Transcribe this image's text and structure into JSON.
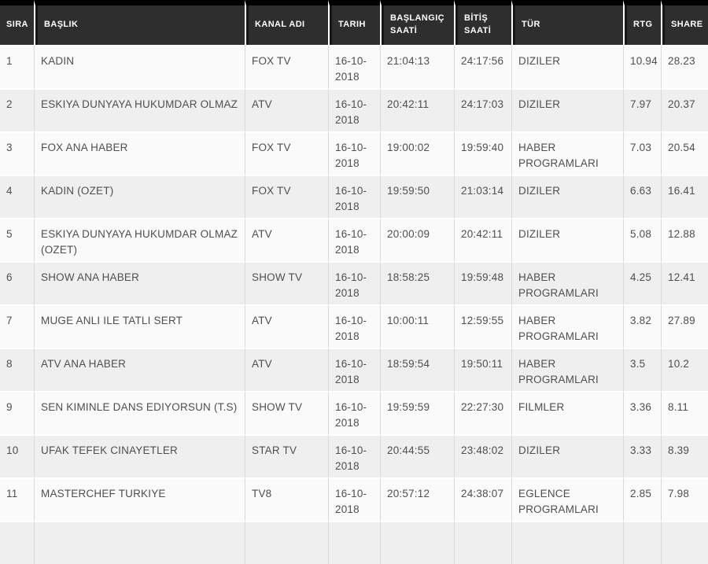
{
  "colors": {
    "top_bar": "#000000",
    "header_background": "#2e2e2e",
    "header_text": "#ffffff",
    "row_light": "#fafafa",
    "row_dark": "#efefef",
    "column_divider": "#d9d9d9",
    "row_divider": "#ffffff",
    "cell_text": "#4f4f4f"
  },
  "table": {
    "columns": [
      {
        "id": "sira",
        "label": "SIRA"
      },
      {
        "id": "baslik",
        "label": "BAŞLIK"
      },
      {
        "id": "kanal",
        "label": "KANAL ADI"
      },
      {
        "id": "tarih",
        "label": "TARIH"
      },
      {
        "id": "baslangic",
        "label": "BAŞLANGIÇ SAATİ"
      },
      {
        "id": "bitis",
        "label": "BİTİŞ SAATİ"
      },
      {
        "id": "tur",
        "label": "TÜR"
      },
      {
        "id": "rtg",
        "label": "RTG"
      },
      {
        "id": "share",
        "label": "SHARE"
      }
    ],
    "rows": [
      {
        "sira": "1",
        "baslik": "KADIN",
        "kanal": "FOX TV",
        "tarih": "16-10-2018",
        "baslangic": "21:04:13",
        "bitis": "24:17:56",
        "tur": "DIZILER",
        "rtg": "10.94",
        "share": "28.23"
      },
      {
        "sira": "2",
        "baslik": "ESKIYA DUNYAYA HUKUMDAR OLMAZ",
        "kanal": "ATV",
        "tarih": "16-10-2018",
        "baslangic": "20:42:11",
        "bitis": "24:17:03",
        "tur": "DIZILER",
        "rtg": "7.97",
        "share": "20.37"
      },
      {
        "sira": "3",
        "baslik": "FOX ANA HABER",
        "kanal": "FOX TV",
        "tarih": "16-10-2018",
        "baslangic": "19:00:02",
        "bitis": "19:59:40",
        "tur": "HABER PROGRAMLARI",
        "rtg": "7.03",
        "share": "20.54"
      },
      {
        "sira": "4",
        "baslik": "KADIN (OZET)",
        "kanal": "FOX TV",
        "tarih": "16-10-2018",
        "baslangic": "19:59:50",
        "bitis": "21:03:14",
        "tur": "DIZILER",
        "rtg": "6.63",
        "share": "16.41"
      },
      {
        "sira": "5",
        "baslik": "ESKIYA DUNYAYA HUKUMDAR OLMAZ (OZET)",
        "kanal": "ATV",
        "tarih": "16-10-2018",
        "baslangic": "20:00:09",
        "bitis": "20:42:11",
        "tur": "DIZILER",
        "rtg": "5.08",
        "share": "12.88"
      },
      {
        "sira": "6",
        "baslik": "SHOW ANA HABER",
        "kanal": "SHOW TV",
        "tarih": "16-10-2018",
        "baslangic": "18:58:25",
        "bitis": "19:59:48",
        "tur": "HABER PROGRAMLARI",
        "rtg": "4.25",
        "share": "12.41"
      },
      {
        "sira": "7",
        "baslik": "MUGE ANLI ILE TATLI SERT",
        "kanal": "ATV",
        "tarih": "16-10-2018",
        "baslangic": "10:00:11",
        "bitis": "12:59:55",
        "tur": "HABER PROGRAMLARI",
        "rtg": "3.82",
        "share": "27.89"
      },
      {
        "sira": "8",
        "baslik": "ATV ANA HABER",
        "kanal": "ATV",
        "tarih": "16-10-2018",
        "baslangic": "18:59:54",
        "bitis": "19:50:11",
        "tur": "HABER PROGRAMLARI",
        "rtg": "3.5",
        "share": "10.2"
      },
      {
        "sira": "9",
        "baslik": "SEN KIMINLE DANS EDIYORSUN (T.S)",
        "kanal": "SHOW TV",
        "tarih": "16-10-2018",
        "baslangic": "19:59:59",
        "bitis": "22:27:30",
        "tur": "FILMLER",
        "rtg": "3.36",
        "share": "8.11"
      },
      {
        "sira": "10",
        "baslik": "UFAK TEFEK CINAYETLER",
        "kanal": "STAR TV",
        "tarih": "16-10-2018",
        "baslangic": "20:44:55",
        "bitis": "23:48:02",
        "tur": "DIZILER",
        "rtg": "3.33",
        "share": "8.39"
      },
      {
        "sira": "11",
        "baslik": "MASTERCHEF TURKIYE",
        "kanal": "TV8",
        "tarih": "16-10-2018",
        "baslangic": "20:57:12",
        "bitis": "24:38:07",
        "tur": "EGLENCE PROGRAMLARI",
        "rtg": "2.85",
        "share": "7.98"
      }
    ],
    "partial_next_row_visible": true
  }
}
